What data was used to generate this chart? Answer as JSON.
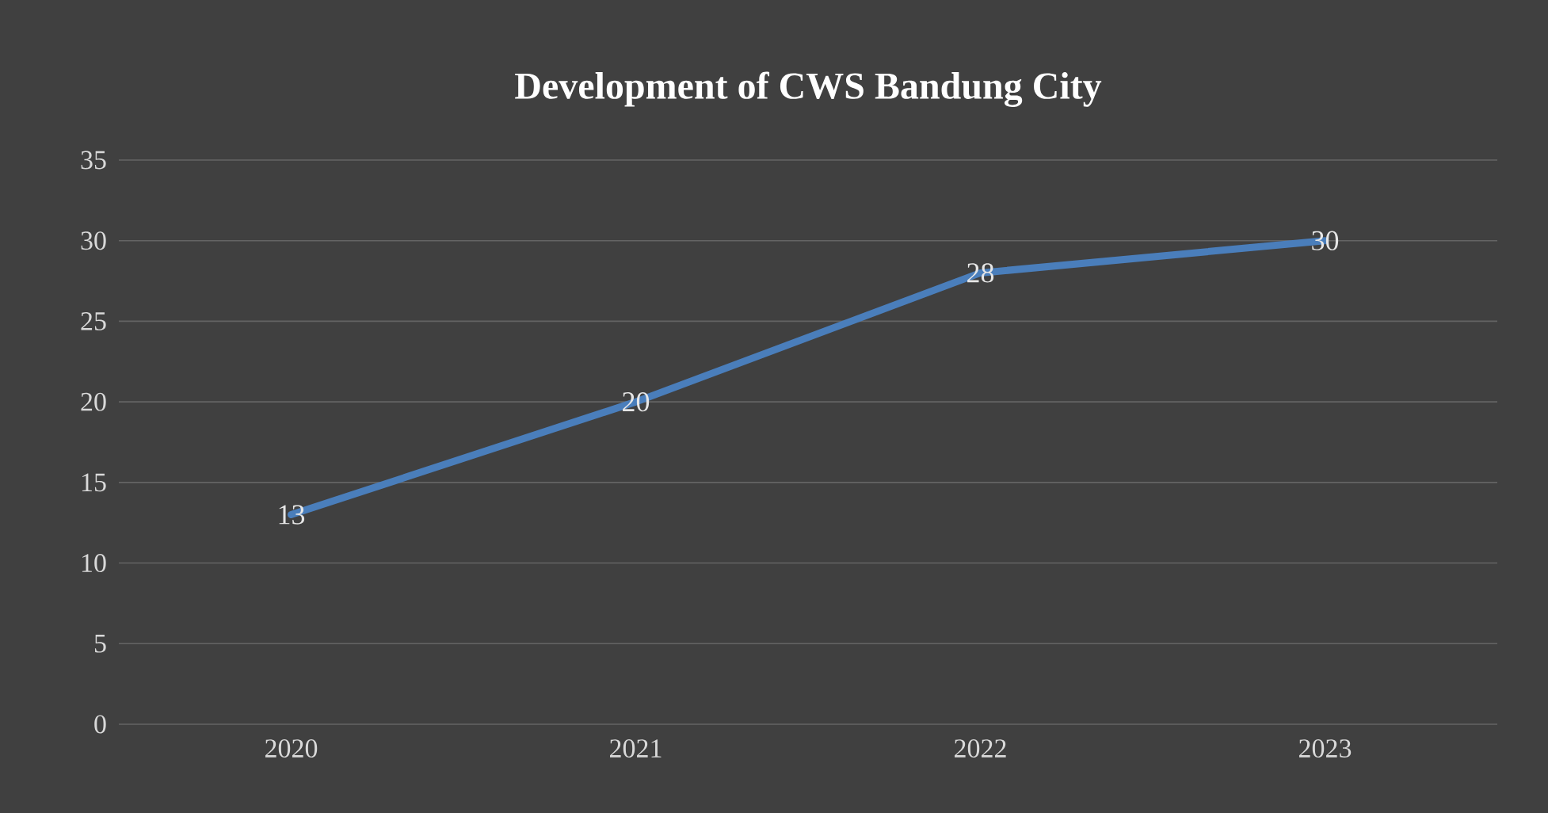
{
  "chart_data": {
    "type": "line",
    "title": "Development of CWS Bandung City",
    "categories": [
      "2020",
      "2021",
      "2022",
      "2023"
    ],
    "values": [
      13,
      20,
      28,
      30
    ],
    "color": "#4a7ebb",
    "ylim": [
      0,
      35
    ],
    "yticks": [
      0,
      5,
      10,
      15,
      20,
      25,
      30,
      35
    ],
    "grid": "y",
    "data_labels": true,
    "marker": "none",
    "line_style": "solid"
  }
}
